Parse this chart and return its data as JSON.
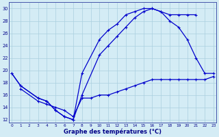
{
  "xlabel": "Graphe des températures (°C)",
  "background_color": "#d4ecf5",
  "grid_color": "#aacfdf",
  "line_color": "#0000cc",
  "ylim": [
    11.5,
    31
  ],
  "xlim": [
    -0.3,
    23.3
  ],
  "yticks": [
    12,
    14,
    16,
    18,
    20,
    22,
    24,
    26,
    28,
    30
  ],
  "xticks": [
    0,
    1,
    2,
    3,
    4,
    5,
    6,
    7,
    8,
    9,
    10,
    11,
    12,
    13,
    14,
    15,
    16,
    17,
    18,
    19,
    20,
    21,
    22,
    23
  ],
  "line1_x": [
    0,
    1,
    3,
    4,
    5,
    6,
    7,
    8,
    10,
    11,
    12,
    13,
    14,
    15,
    16,
    17,
    18,
    19,
    20,
    21
  ],
  "line1_y": [
    19.5,
    17.5,
    15.5,
    15.0,
    13.5,
    12.5,
    12.0,
    19.5,
    25.0,
    26.5,
    27.5,
    29.0,
    29.5,
    30.0,
    30.0,
    29.5,
    29.0,
    29.0,
    29.0,
    29.0
  ],
  "line2_x": [
    0,
    1,
    3,
    4,
    5,
    6,
    7,
    8,
    10,
    11,
    12,
    13,
    14,
    15,
    16,
    17,
    18,
    19,
    20,
    21,
    22,
    23
  ],
  "line2_y": [
    19.5,
    17.5,
    15.5,
    15.0,
    13.5,
    12.5,
    12.0,
    16.0,
    22.5,
    24.0,
    25.5,
    27.0,
    28.5,
    29.5,
    30.0,
    29.5,
    28.0,
    27.0,
    25.0,
    22.0,
    19.5,
    19.5
  ],
  "line3_x": [
    1,
    3,
    4,
    5,
    6,
    7,
    8,
    9,
    10,
    11,
    12,
    13,
    14,
    15,
    16,
    17,
    18,
    19,
    20,
    21,
    22,
    23
  ],
  "line3_y": [
    17.0,
    15.0,
    14.5,
    14.0,
    13.5,
    12.5,
    15.5,
    15.5,
    16.0,
    16.0,
    16.5,
    17.0,
    17.5,
    18.0,
    18.5,
    18.5,
    18.5,
    18.5,
    18.5,
    18.5,
    18.5,
    19.0
  ]
}
